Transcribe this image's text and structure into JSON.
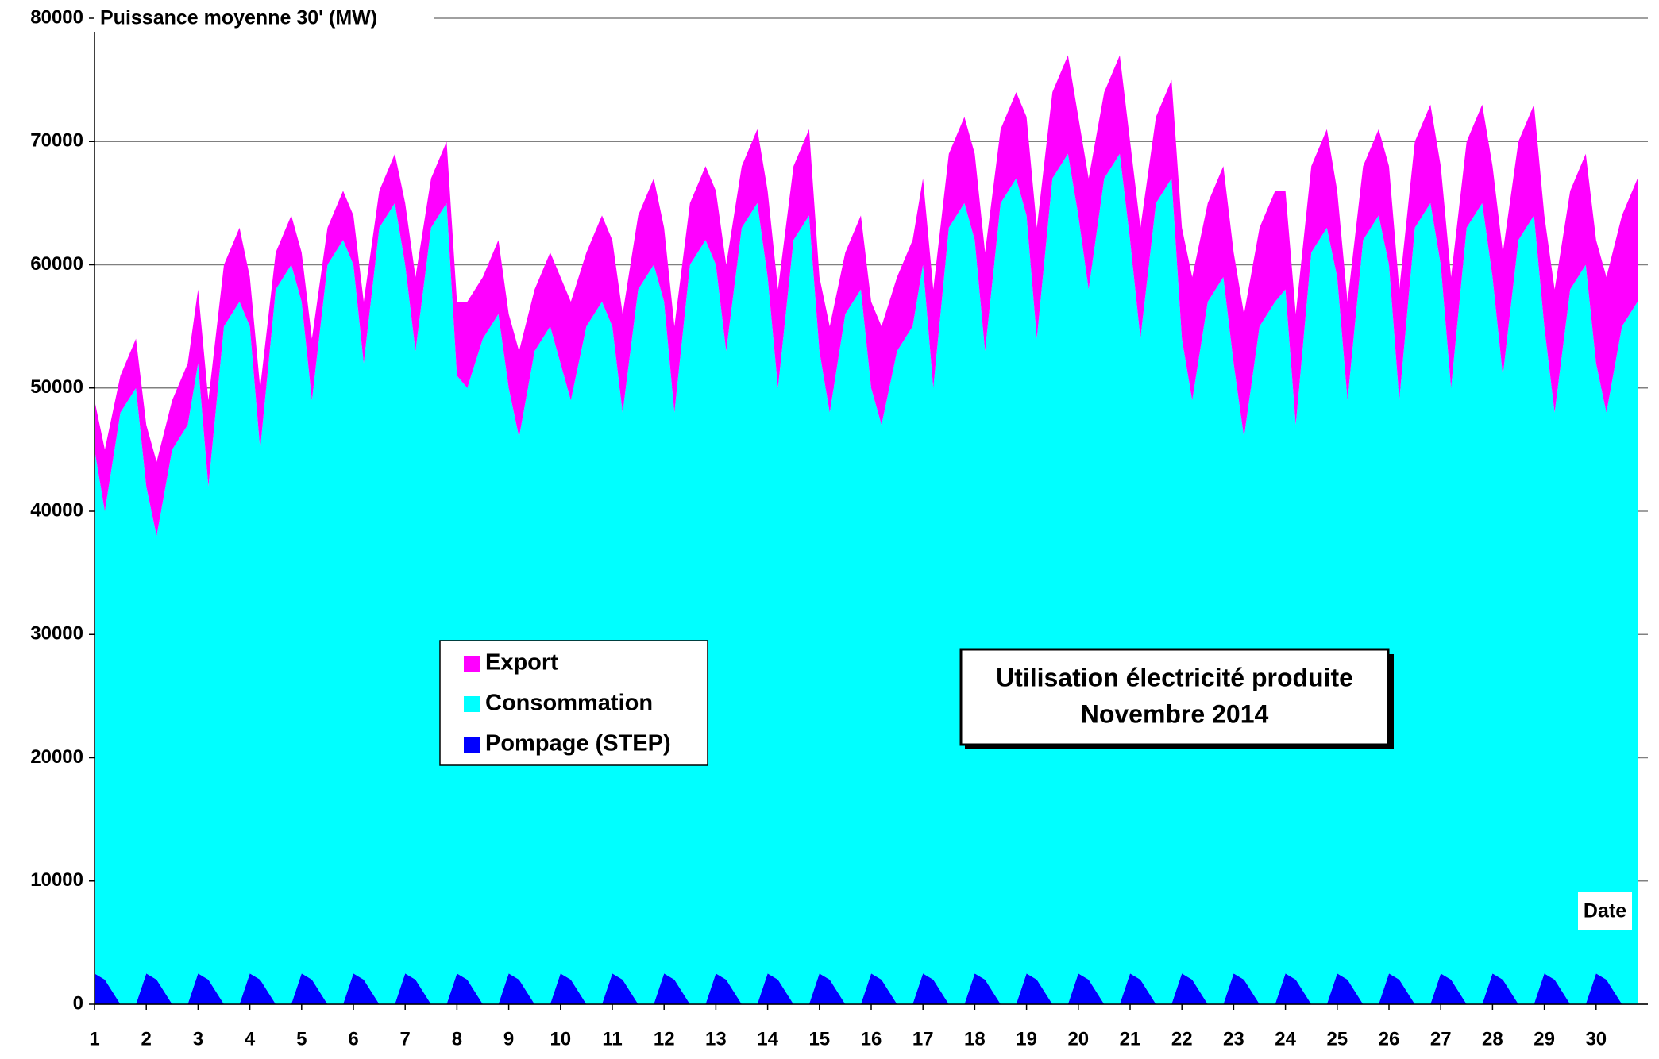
{
  "chart_data": {
    "type": "stacked-area",
    "title": "Utilisation électricité produite",
    "subtitle": "Novembre 2014",
    "y_label": "Puissance moyenne 30' (MW)",
    "x_label": "Date",
    "x": [
      1,
      1.2,
      1.5,
      1.8,
      2,
      2.2,
      2.5,
      2.8,
      3,
      3.2,
      3.5,
      3.8,
      4,
      4.2,
      4.5,
      4.8,
      5,
      5.2,
      5.5,
      5.8,
      6,
      6.2,
      6.5,
      6.8,
      7,
      7.2,
      7.5,
      7.8,
      8,
      8.2,
      8.5,
      8.8,
      9,
      9.2,
      9.5,
      9.8,
      10,
      10.2,
      10.5,
      10.8,
      11,
      11.2,
      11.5,
      11.8,
      12,
      12.2,
      12.5,
      12.8,
      13,
      13.2,
      13.5,
      13.8,
      14,
      14.2,
      14.5,
      14.8,
      15,
      15.2,
      15.5,
      15.8,
      16,
      16.2,
      16.5,
      16.8,
      17,
      17.2,
      17.5,
      17.8,
      18,
      18.2,
      18.5,
      18.8,
      19,
      19.2,
      19.5,
      19.8,
      20,
      20.2,
      20.5,
      20.8,
      21,
      21.2,
      21.5,
      21.8,
      22,
      22.2,
      22.5,
      22.8,
      23,
      23.2,
      23.5,
      23.8,
      24,
      24.2,
      24.5,
      24.8,
      25,
      25.2,
      25.5,
      25.8,
      26,
      26.2,
      26.5,
      26.8,
      27,
      27.2,
      27.5,
      27.8,
      28,
      28.2,
      28.5,
      28.8,
      29,
      29.2,
      29.5,
      29.8,
      30,
      30.2,
      30.5,
      30.8
    ],
    "series": [
      {
        "name": "Pompage (STEP)",
        "color": "#0000ff",
        "values": [
          2500,
          2000,
          0,
          0,
          2500,
          2000,
          0,
          0,
          2500,
          2000,
          0,
          0,
          2500,
          2000,
          0,
          0,
          2500,
          2000,
          0,
          0,
          2500,
          2000,
          0,
          0,
          2500,
          2000,
          0,
          0,
          2500,
          2000,
          0,
          0,
          2500,
          2000,
          0,
          0,
          2500,
          2000,
          0,
          0,
          2500,
          2000,
          0,
          0,
          2500,
          2000,
          0,
          0,
          2500,
          2000,
          0,
          0,
          2500,
          2000,
          0,
          0,
          2500,
          2000,
          0,
          0,
          2500,
          2000,
          0,
          0,
          2500,
          2000,
          0,
          0,
          2500,
          2000,
          0,
          0,
          2500,
          2000,
          0,
          0,
          2500,
          2000,
          0,
          0,
          2500,
          2000,
          0,
          0,
          2500,
          2000,
          0,
          0,
          2500,
          2000,
          0,
          0,
          2500,
          2000,
          0,
          0,
          2500,
          2000,
          0,
          0,
          2500,
          2000,
          0,
          0,
          2500,
          2000,
          0,
          0,
          2500,
          2000,
          0,
          0,
          2500,
          2000,
          0,
          0,
          2500,
          2000,
          0,
          0
        ]
      },
      {
        "name": "Consommation",
        "color": "#00ffff",
        "values": [
          42500,
          38000,
          48000,
          50000,
          39500,
          36000,
          45000,
          47000,
          49500,
          40000,
          55000,
          57000,
          52500,
          43000,
          58000,
          60000,
          54500,
          47000,
          60000,
          62000,
          57500,
          50000,
          63000,
          65000,
          57500,
          51000,
          63000,
          65000,
          48500,
          48000,
          54000,
          56000,
          47500,
          44000,
          53000,
          55000,
          49500,
          47000,
          55000,
          57000,
          52500,
          46000,
          58000,
          60000,
          54500,
          46000,
          60000,
          62000,
          57500,
          51000,
          63000,
          65000,
          56500,
          48000,
          62000,
          64000,
          50500,
          46000,
          56000,
          58000,
          47500,
          45000,
          53000,
          55000,
          57500,
          48000,
          63000,
          65000,
          59500,
          51000,
          65000,
          67000,
          61500,
          52000,
          67000,
          69000,
          61500,
          56000,
          67000,
          69000,
          59500,
          52000,
          65000,
          67000,
          51500,
          47000,
          57000,
          59000,
          49500,
          44000,
          55000,
          57000,
          55500,
          45000,
          61000,
          63000,
          56500,
          47000,
          62000,
          64000,
          57500,
          47000,
          63000,
          65000,
          57500,
          48000,
          63000,
          65000,
          56500,
          49000,
          62000,
          64000,
          52500,
          46000,
          58000,
          60000,
          49500,
          46000,
          55000,
          57000
        ]
      },
      {
        "name": "Export",
        "color": "#ff00ff",
        "values": [
          4000,
          5000,
          3000,
          4000,
          5000,
          6000,
          4000,
          5000,
          6000,
          7000,
          5000,
          6000,
          4000,
          5000,
          3000,
          4000,
          4000,
          5000,
          3000,
          4000,
          4000,
          5000,
          3000,
          4000,
          5000,
          6000,
          4000,
          5000,
          6000,
          7000,
          5000,
          6000,
          6000,
          7000,
          5000,
          6000,
          7000,
          8000,
          6000,
          7000,
          7000,
          8000,
          6000,
          7000,
          6000,
          7000,
          5000,
          6000,
          6000,
          7000,
          5000,
          6000,
          7000,
          8000,
          6000,
          7000,
          6000,
          7000,
          5000,
          6000,
          7000,
          8000,
          6000,
          7000,
          7000,
          8000,
          6000,
          7000,
          7000,
          8000,
          6000,
          7000,
          8000,
          9000,
          7000,
          8000,
          8000,
          9000,
          7000,
          8000,
          8000,
          9000,
          7000,
          8000,
          9000,
          10000,
          8000,
          9000,
          9000,
          10000,
          8000,
          9000,
          8000,
          9000,
          7000,
          8000,
          7000,
          8000,
          6000,
          7000,
          8000,
          9000,
          7000,
          8000,
          8000,
          9000,
          7000,
          8000,
          9000,
          10000,
          8000,
          9000,
          9000,
          10000,
          8000,
          9000,
          10000,
          11000,
          9000,
          10000
        ]
      }
    ],
    "xlim": [
      1,
      31
    ],
    "xticks": [
      1,
      2,
      3,
      4,
      5,
      6,
      7,
      8,
      9,
      10,
      11,
      12,
      13,
      14,
      15,
      16,
      17,
      18,
      19,
      20,
      21,
      22,
      23,
      24,
      25,
      26,
      27,
      28,
      29,
      30
    ],
    "ylim": [
      0,
      80000
    ],
    "yticks": [
      0,
      10000,
      20000,
      30000,
      40000,
      50000,
      60000,
      70000,
      80000
    ],
    "grid": true
  }
}
